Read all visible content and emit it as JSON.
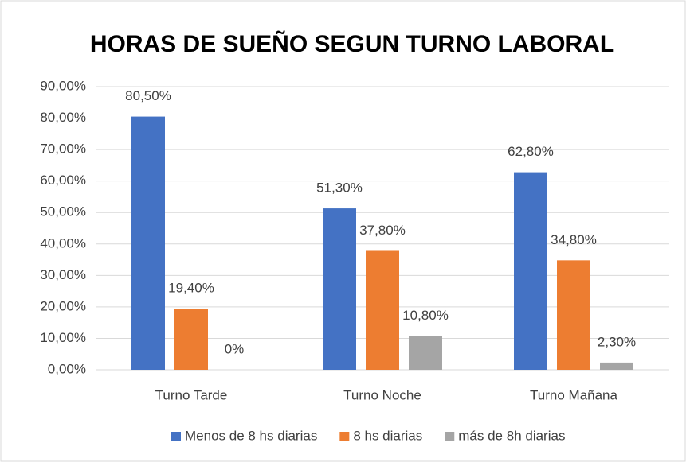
{
  "chart_data": {
    "type": "bar",
    "title": "HORAS DE SUEÑO SEGUN TURNO LABORAL",
    "categories": [
      "Turno Tarde",
      "Turno Noche",
      "Turno Mañana"
    ],
    "series": [
      {
        "name": "Menos de 8 hs diarias",
        "color": "#4472c4",
        "values": [
          80.5,
          51.3,
          62.8
        ],
        "value_labels": [
          "80,50%",
          "51,30%",
          "62,80%"
        ]
      },
      {
        "name": "8 hs diarias",
        "color": "#ed7d31",
        "values": [
          19.4,
          37.8,
          34.8
        ],
        "value_labels": [
          "19,40%",
          "37,80%",
          "34,80%"
        ]
      },
      {
        "name": "más de 8h diarias",
        "color": "#a5a5a5",
        "values": [
          0,
          10.8,
          2.3
        ],
        "value_labels": [
          "0%",
          "10,80%",
          "2,30%"
        ]
      }
    ],
    "ylim": [
      0,
      90
    ],
    "yticks": [
      {
        "value": 0,
        "label": "0,00%"
      },
      {
        "value": 10,
        "label": "10,00%"
      },
      {
        "value": 20,
        "label": "20,00%"
      },
      {
        "value": 30,
        "label": "30,00%"
      },
      {
        "value": 40,
        "label": "40,00%"
      },
      {
        "value": 50,
        "label": "50,00%"
      },
      {
        "value": 60,
        "label": "60,00%"
      },
      {
        "value": 70,
        "label": "70,00%"
      },
      {
        "value": 80,
        "label": "80,00%"
      },
      {
        "value": 90,
        "label": "90,00%"
      }
    ],
    "grid": true,
    "legend": "bottom"
  }
}
